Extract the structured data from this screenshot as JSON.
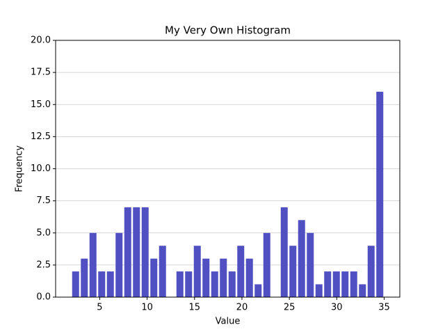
{
  "chart_data": {
    "type": "histogram",
    "title": "My Very Own Histogram",
    "x_label": "Value",
    "y_label": "Frequency",
    "bins": [
      2,
      2.917,
      3.833,
      4.75,
      5.667,
      6.583,
      7.5,
      8.417,
      9.333,
      10.25,
      11.167,
      12.083,
      13,
      13.917,
      14.833,
      15.75,
      16.667,
      17.583,
      18.5,
      19.417,
      20.333,
      21.25,
      22.167,
      23.083,
      24,
      24.917,
      25.833,
      26.75,
      27.667,
      28.583,
      29.5,
      30.417,
      31.333,
      32.25,
      33.167,
      34.083,
      35
    ],
    "counts": [
      2,
      3,
      5,
      2,
      2,
      5,
      7,
      7,
      7,
      3,
      4,
      0,
      2,
      2,
      4,
      3,
      2,
      3,
      2,
      4,
      3,
      1,
      5,
      0,
      7,
      4,
      6,
      5,
      1,
      2,
      2,
      2,
      2,
      1,
      4,
      16
    ],
    "color": "#5050c2",
    "xlim": [
      0.35,
      36.65
    ],
    "xticks": [
      5,
      10,
      15,
      20,
      25,
      30,
      35
    ],
    "ylim": [
      0,
      20
    ],
    "yticks": [
      {
        "value": 0,
        "label": "0.0"
      },
      2.5,
      {
        "value": 5,
        "label": "5.0"
      },
      7.5,
      {
        "value": 10,
        "label": "10.0"
      },
      12.5,
      {
        "value": 15,
        "label": "15.0"
      },
      17.5,
      {
        "value": 20,
        "label": "20.0"
      }
    ],
    "grid": true
  }
}
